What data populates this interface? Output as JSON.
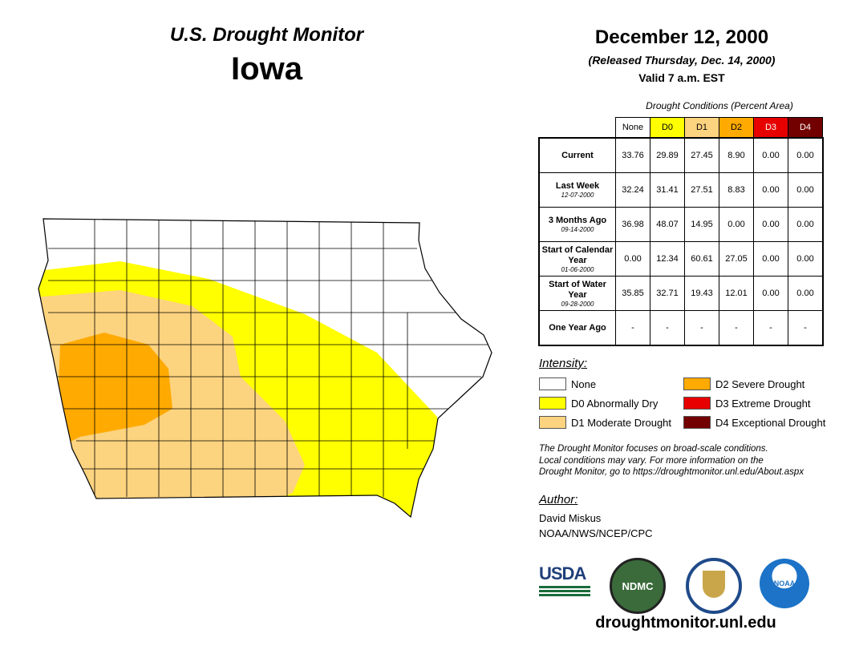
{
  "header": {
    "title": "U.S. Drought Monitor",
    "state": "Iowa",
    "date": "December 12, 2000",
    "released": "(Released Thursday, Dec. 14, 2000)",
    "valid": "Valid 7 a.m. EST"
  },
  "table": {
    "caption": "Drought Conditions (Percent Area)",
    "columns": [
      {
        "label": "None",
        "color": "#ffffff",
        "text": "#000"
      },
      {
        "label": "D0",
        "color": "#ffff00",
        "text": "#000"
      },
      {
        "label": "D1",
        "color": "#fcd37f",
        "text": "#000"
      },
      {
        "label": "D2",
        "color": "#ffaa00",
        "text": "#000"
      },
      {
        "label": "D3",
        "color": "#e60000",
        "text": "#fff"
      },
      {
        "label": "D4",
        "color": "#730000",
        "text": "#fff"
      }
    ],
    "rows": [
      {
        "label": "Current",
        "sub": "",
        "values": [
          "33.76",
          "29.89",
          "27.45",
          "8.90",
          "0.00",
          "0.00"
        ]
      },
      {
        "label": "Last Week",
        "sub": "12-07-2000",
        "values": [
          "32.24",
          "31.41",
          "27.51",
          "8.83",
          "0.00",
          "0.00"
        ]
      },
      {
        "label": "3 Months Ago",
        "sub": "09-14-2000",
        "values": [
          "36.98",
          "48.07",
          "14.95",
          "0.00",
          "0.00",
          "0.00"
        ]
      },
      {
        "label": "Start of Calendar Year",
        "sub": "01-06-2000",
        "values": [
          "0.00",
          "12.34",
          "60.61",
          "27.05",
          "0.00",
          "0.00"
        ]
      },
      {
        "label": "Start of Water Year",
        "sub": "09-28-2000",
        "values": [
          "35.85",
          "32.71",
          "19.43",
          "12.01",
          "0.00",
          "0.00"
        ]
      },
      {
        "label": "One Year Ago",
        "sub": "",
        "values": [
          "-",
          "-",
          "-",
          "-",
          "-",
          "-"
        ]
      }
    ]
  },
  "legend": {
    "title": "Intensity:",
    "items": [
      {
        "label": "None",
        "color": "#ffffff"
      },
      {
        "label": "D0 Abnormally Dry",
        "color": "#ffff00"
      },
      {
        "label": "D1 Moderate Drought",
        "color": "#fcd37f"
      },
      {
        "label": "D2 Severe Drought",
        "color": "#ffaa00"
      },
      {
        "label": "D3 Extreme Drought",
        "color": "#e60000"
      },
      {
        "label": "D4 Exceptional Drought",
        "color": "#730000"
      }
    ]
  },
  "note": [
    "The Drought Monitor focuses on broad-scale conditions.",
    "Local conditions may vary. For more information on the",
    "Drought Monitor, go to https://droughtmonitor.unl.edu/About.aspx"
  ],
  "author": {
    "label": "Author:",
    "name": "David Miskus",
    "org": "NOAA/NWS/NCEP/CPC"
  },
  "logos": {
    "usda": "USDA",
    "ndmc": "NDMC",
    "noaa": "NOAA"
  },
  "url": "droughtmonitor.unl.edu"
}
